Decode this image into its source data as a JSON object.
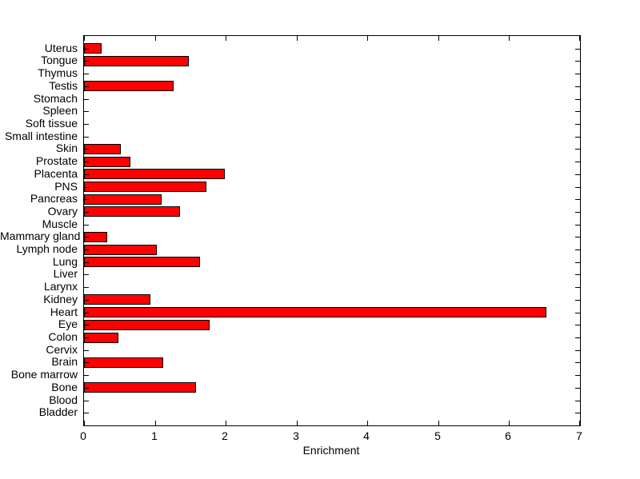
{
  "chart_data": {
    "type": "bar",
    "orientation": "horizontal",
    "title": "",
    "xlabel": "Enrichment",
    "ylabel": "",
    "xlim": [
      0,
      7
    ],
    "x_ticks": [
      0,
      1,
      2,
      3,
      4,
      5,
      6,
      7
    ],
    "grid": false,
    "legend": "none",
    "bar_color": "#FF0000",
    "bar_edge_color": "#000000",
    "axis_color": "#000000",
    "background_color": "#FFFFFF",
    "categories": [
      "Uterus",
      "Tongue",
      "Thymus",
      "Testis",
      "Stomach",
      "Spleen",
      "Soft tissue",
      "Small intestine",
      "Skin",
      "Prostate",
      "Placenta",
      "PNS",
      "Pancreas",
      "Ovary",
      "Muscle",
      "Mammary gland",
      "Lymph node",
      "Lung",
      "Liver",
      "Larynx",
      "Kidney",
      "Heart",
      "Eye",
      "Colon",
      "Cervix",
      "Brain",
      "Bone marrow",
      "Bone",
      "Blood",
      "Bladder"
    ],
    "values": [
      0.23,
      1.46,
      0,
      1.24,
      0,
      0,
      0,
      0,
      0.5,
      0.63,
      1.97,
      1.7,
      1.07,
      1.33,
      0,
      0.3,
      1.0,
      1.62,
      0,
      0,
      0.92,
      6.5,
      1.75,
      0.46,
      0,
      1.09,
      0,
      1.56,
      0,
      0
    ]
  }
}
